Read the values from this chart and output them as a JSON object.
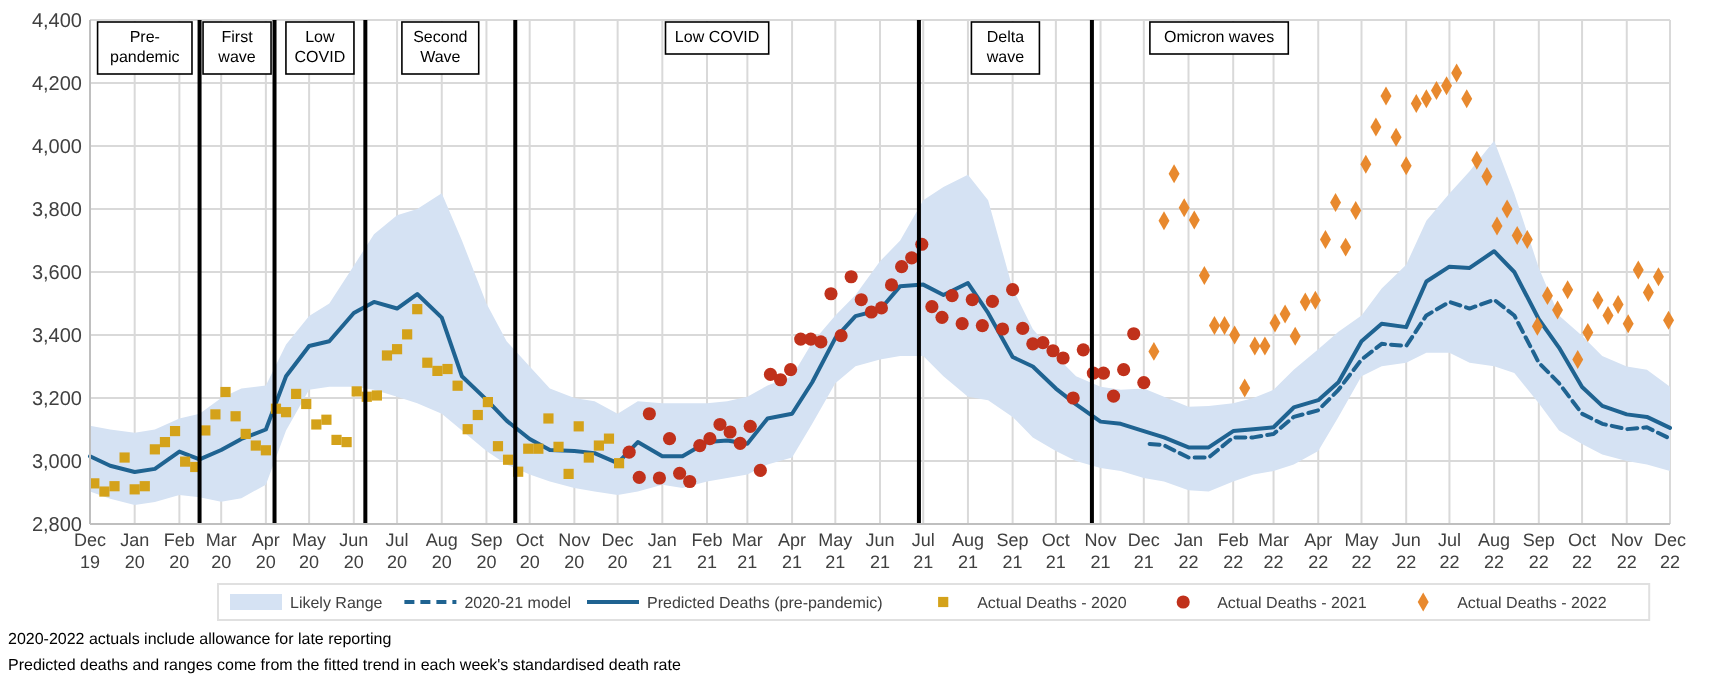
{
  "chart_data": {
    "type": "line",
    "x": [
      "2019-12-01",
      "2019-12-15",
      "2020-01-01",
      "2020-01-15",
      "2020-02-01",
      "2020-02-15",
      "2020-03-01",
      "2020-03-15",
      "2020-04-01",
      "2020-04-15",
      "2020-05-01",
      "2020-05-15",
      "2020-06-01",
      "2020-06-15",
      "2020-07-01",
      "2020-07-15",
      "2020-08-01",
      "2020-08-15",
      "2020-09-01",
      "2020-09-15",
      "2020-10-01",
      "2020-10-15",
      "2020-11-01",
      "2020-11-15",
      "2020-12-01",
      "2020-12-15",
      "2021-01-01",
      "2021-01-15",
      "2021-02-01",
      "2021-02-15",
      "2021-03-01",
      "2021-03-15",
      "2021-04-01",
      "2021-04-15",
      "2021-05-01",
      "2021-05-15",
      "2021-06-01",
      "2021-06-15",
      "2021-07-01",
      "2021-07-15",
      "2021-08-01",
      "2021-08-15",
      "2021-09-01",
      "2021-09-15",
      "2021-10-01",
      "2021-10-15",
      "2021-11-01",
      "2021-11-15",
      "2021-12-01",
      "2021-12-15",
      "2022-01-01",
      "2022-01-15",
      "2022-02-01",
      "2022-02-15",
      "2022-03-01",
      "2022-03-15",
      "2022-04-01",
      "2022-04-15",
      "2022-05-01",
      "2022-05-15",
      "2022-06-01",
      "2022-06-15",
      "2022-07-01",
      "2022-07-15",
      "2022-08-01",
      "2022-08-15",
      "2022-09-01",
      "2022-09-15",
      "2022-10-01",
      "2022-10-15",
      "2022-11-01",
      "2022-11-15",
      "2022-12-01"
    ],
    "series": [
      {
        "name": "2020-21 model",
        "type": "line",
        "color": "#1f6391",
        "line_style": "dashed",
        "x": [
          "2021-12-05",
          "2021-12-15",
          "2022-01-01",
          "2022-01-15",
          "2022-02-01",
          "2022-02-15",
          "2022-03-01",
          "2022-03-15",
          "2022-04-01",
          "2022-04-15",
          "2022-05-01",
          "2022-05-15",
          "2022-06-01",
          "2022-06-15",
          "2022-07-01",
          "2022-07-15",
          "2022-08-01",
          "2022-08-15",
          "2022-09-01",
          "2022-09-15",
          "2022-10-01",
          "2022-10-15",
          "2022-11-01",
          "2022-11-15",
          "2022-12-01"
        ],
        "values": [
          3054,
          3050,
          3011,
          3011,
          3075,
          3075,
          3086,
          3140,
          3161,
          3226,
          3322,
          3372,
          3365,
          3462,
          3505,
          3484,
          3512,
          3462,
          3312,
          3247,
          3150,
          3118,
          3101,
          3107,
          3071
        ]
      },
      {
        "name": "Predicted Deaths (pre-pandemic)",
        "type": "line",
        "color": "#1f6391",
        "line_style": "solid",
        "lower": [
          2903,
          2880,
          2860,
          2870,
          2892,
          2885,
          2871,
          2882,
          2925,
          3097,
          3226,
          3236,
          3236,
          3226,
          3204,
          3183,
          3150,
          3097,
          3032,
          2989,
          2957,
          2935,
          2914,
          2903,
          2892,
          2903,
          2925,
          2914,
          2935,
          2946,
          2957,
          2989,
          3011,
          3118,
          3247,
          3301,
          3322,
          3333,
          3333,
          3269,
          3204,
          3193,
          3140,
          3075,
          3032,
          3000,
          2978,
          2968,
          2946,
          2935,
          2907,
          2903,
          2935,
          2957,
          2968,
          2989,
          3032,
          3140,
          3269,
          3301,
          3312,
          3344,
          3344,
          3312,
          3301,
          3279,
          3183,
          3097,
          3054,
          3021,
          3000,
          2989,
          2968
        ],
        "upper": [
          3112,
          3100,
          3090,
          3100,
          3135,
          3150,
          3200,
          3230,
          3240,
          3370,
          3460,
          3500,
          3620,
          3720,
          3780,
          3800,
          3850,
          3700,
          3500,
          3380,
          3300,
          3230,
          3200,
          3190,
          3150,
          3190,
          3183,
          3183,
          3183,
          3190,
          3204,
          3240,
          3269,
          3376,
          3462,
          3527,
          3634,
          3700,
          3828,
          3870,
          3909,
          3828,
          3548,
          3419,
          3333,
          3269,
          3236,
          3226,
          3230,
          3204,
          3172,
          3175,
          3183,
          3200,
          3226,
          3290,
          3355,
          3410,
          3462,
          3548,
          3623,
          3763,
          3849,
          3920,
          4017,
          3849,
          3613,
          3462,
          3398,
          3333,
          3300,
          3290,
          3236
        ],
        "values": [
          3015,
          2985,
          2965,
          2975,
          3030,
          3005,
          3035,
          3070,
          3100,
          3269,
          3365,
          3380,
          3470,
          3505,
          3484,
          3530,
          3455,
          3269,
          3195,
          3128,
          3070,
          3035,
          3032,
          3025,
          2993,
          3060,
          3015,
          3015,
          3060,
          3065,
          3055,
          3135,
          3150,
          3250,
          3390,
          3460,
          3480,
          3555,
          3560,
          3527,
          3565,
          3470,
          3330,
          3300,
          3230,
          3180,
          3125,
          3118,
          3095,
          3075,
          3043,
          3043,
          3095,
          3101,
          3107,
          3170,
          3193,
          3250,
          3380,
          3436,
          3425,
          3570,
          3617,
          3613,
          3666,
          3600,
          3450,
          3360,
          3235,
          3175,
          3148,
          3140,
          3105
        ]
      },
      {
        "name": "Actual Deaths - 2020",
        "type": "scatter",
        "color": "#d4a21a",
        "marker": "square",
        "x": [
          "2019-12-04",
          "2019-12-11",
          "2019-12-18",
          "2019-12-25",
          "2020-01-01",
          "2020-01-08",
          "2020-01-15",
          "2020-01-22",
          "2020-01-29",
          "2020-02-05",
          "2020-02-12",
          "2020-02-19",
          "2020-02-26",
          "2020-03-04",
          "2020-03-11",
          "2020-03-18",
          "2020-03-25",
          "2020-04-01",
          "2020-04-08",
          "2020-04-15",
          "2020-04-22",
          "2020-04-29",
          "2020-05-06",
          "2020-05-13",
          "2020-05-20",
          "2020-05-27",
          "2020-06-03",
          "2020-06-10",
          "2020-06-17",
          "2020-06-24",
          "2020-07-01",
          "2020-07-08",
          "2020-07-15",
          "2020-07-22",
          "2020-07-29",
          "2020-08-05",
          "2020-08-12",
          "2020-08-19",
          "2020-08-26",
          "2020-09-02",
          "2020-09-09",
          "2020-09-16",
          "2020-09-23",
          "2020-09-30",
          "2020-10-07",
          "2020-10-14",
          "2020-10-21",
          "2020-10-28",
          "2020-11-04",
          "2020-11-11",
          "2020-11-18",
          "2020-11-25",
          "2020-12-02"
        ],
        "values": [
          2929,
          2903,
          2920,
          3011,
          2910,
          2920,
          3037,
          3060,
          3095,
          2998,
          2981,
          3097,
          3148,
          3219,
          3142,
          3086,
          3049,
          3034,
          3166,
          3155,
          3213,
          3181,
          3116,
          3131,
          3067,
          3060,
          3221,
          3204,
          3208,
          3335,
          3355,
          3402,
          3482,
          3312,
          3286,
          3292,
          3239,
          3101,
          3146,
          3187,
          3047,
          3004,
          2966,
          3039,
          3039,
          3135,
          3045,
          2959,
          3110,
          3011,
          3049,
          3071,
          2993
        ]
      },
      {
        "name": "Actual Deaths - 2021",
        "type": "scatter",
        "color": "#c0311b",
        "marker": "circle",
        "x": [
          "2020-12-09",
          "2020-12-16",
          "2020-12-23",
          "2020-12-30",
          "2021-01-06",
          "2021-01-13",
          "2021-01-20",
          "2021-01-27",
          "2021-02-03",
          "2021-02-10",
          "2021-02-17",
          "2021-02-24",
          "2021-03-03",
          "2021-03-10",
          "2021-03-17",
          "2021-03-24",
          "2021-03-31",
          "2021-04-07",
          "2021-04-14",
          "2021-04-21",
          "2021-04-28",
          "2021-05-05",
          "2021-05-12",
          "2021-05-19",
          "2021-05-26",
          "2021-06-02",
          "2021-06-09",
          "2021-06-16",
          "2021-06-23",
          "2021-06-30",
          "2021-07-07",
          "2021-07-14",
          "2021-07-21",
          "2021-07-28",
          "2021-08-04",
          "2021-08-11",
          "2021-08-18",
          "2021-08-25",
          "2021-09-01",
          "2021-09-08",
          "2021-09-15",
          "2021-09-22",
          "2021-09-29",
          "2021-10-06",
          "2021-10-13",
          "2021-10-20",
          "2021-10-27",
          "2021-11-03",
          "2021-11-10",
          "2021-11-17",
          "2021-11-24",
          "2021-12-01"
        ],
        "values": [
          3028,
          2948,
          3150,
          2946,
          3071,
          2961,
          2935,
          3049,
          3071,
          3116,
          3092,
          3056,
          3110,
          2970,
          3275,
          3258,
          3290,
          3387,
          3387,
          3378,
          3531,
          3398,
          3585,
          3512,
          3473,
          3486,
          3559,
          3617,
          3645,
          3688,
          3490,
          3456,
          3525,
          3436,
          3512,
          3430,
          3507,
          3419,
          3544,
          3421,
          3372,
          3376,
          3350,
          3327,
          3200,
          3353,
          3279,
          3279,
          3206,
          3290,
          3404,
          3249
        ]
      },
      {
        "name": "Actual Deaths - 2022",
        "type": "scatter",
        "color": "#e8892e",
        "marker": "diamond",
        "x": [
          "2021-12-08",
          "2021-12-15",
          "2021-12-22",
          "2021-12-29",
          "2022-01-05",
          "2022-01-12",
          "2022-01-19",
          "2022-01-26",
          "2022-02-02",
          "2022-02-09",
          "2022-02-16",
          "2022-02-23",
          "2022-03-02",
          "2022-03-09",
          "2022-03-16",
          "2022-03-23",
          "2022-03-30",
          "2022-04-06",
          "2022-04-13",
          "2022-04-20",
          "2022-04-27",
          "2022-05-04",
          "2022-05-11",
          "2022-05-18",
          "2022-05-25",
          "2022-06-01",
          "2022-06-08",
          "2022-06-15",
          "2022-06-22",
          "2022-06-29",
          "2022-07-06",
          "2022-07-13",
          "2022-07-20",
          "2022-07-27",
          "2022-08-03",
          "2022-08-10",
          "2022-08-17",
          "2022-08-24",
          "2022-08-31",
          "2022-09-07",
          "2022-09-14",
          "2022-09-21",
          "2022-09-28",
          "2022-10-05",
          "2022-10-12",
          "2022-10-19",
          "2022-10-26",
          "2022-11-02",
          "2022-11-09",
          "2022-11-16",
          "2022-11-23",
          "2022-11-30"
        ],
        "values": [
          3348,
          3763,
          3912,
          3804,
          3765,
          3589,
          3430,
          3430,
          3400,
          3232,
          3365,
          3365,
          3438,
          3467,
          3396,
          3505,
          3510,
          3703,
          3821,
          3679,
          3795,
          3942,
          4060,
          4159,
          4028,
          3937,
          4135,
          4150,
          4176,
          4191,
          4232,
          4150,
          3955,
          3903,
          3746,
          3800,
          3716,
          3703,
          3428,
          3525,
          3479,
          3544,
          3322,
          3408,
          3510,
          3462,
          3497,
          3436,
          3606,
          3535,
          3585,
          3447
        ]
      }
    ],
    "xlim": [
      "2019-12-01",
      "2022-12-01"
    ],
    "xticks": [
      {
        "value": "2019-12-01",
        "label": "Dec 19"
      },
      {
        "value": "2020-01-01",
        "label": "Jan 20"
      },
      {
        "value": "2020-02-01",
        "label": "Feb 20"
      },
      {
        "value": "2020-03-01",
        "label": "Mar 20"
      },
      {
        "value": "2020-04-01",
        "label": "Apr 20"
      },
      {
        "value": "2020-05-01",
        "label": "May 20"
      },
      {
        "value": "2020-06-01",
        "label": "Jun 20"
      },
      {
        "value": "2020-07-01",
        "label": "Jul 20"
      },
      {
        "value": "2020-08-01",
        "label": "Aug 20"
      },
      {
        "value": "2020-09-01",
        "label": "Sep 20"
      },
      {
        "value": "2020-10-01",
        "label": "Oct 20"
      },
      {
        "value": "2020-11-01",
        "label": "Nov 20"
      },
      {
        "value": "2020-12-01",
        "label": "Dec 20"
      },
      {
        "value": "2021-01-01",
        "label": "Jan 21"
      },
      {
        "value": "2021-02-01",
        "label": "Feb 21"
      },
      {
        "value": "2021-03-01",
        "label": "Mar 21"
      },
      {
        "value": "2021-04-01",
        "label": "Apr 21"
      },
      {
        "value": "2021-05-01",
        "label": "May 21"
      },
      {
        "value": "2021-06-01",
        "label": "Jun 21"
      },
      {
        "value": "2021-07-01",
        "label": "Jul 21"
      },
      {
        "value": "2021-08-01",
        "label": "Aug 21"
      },
      {
        "value": "2021-09-01",
        "label": "Sep 21"
      },
      {
        "value": "2021-10-01",
        "label": "Oct 21"
      },
      {
        "value": "2021-11-01",
        "label": "Nov 21"
      },
      {
        "value": "2021-12-01",
        "label": "Dec 21"
      },
      {
        "value": "2022-01-01",
        "label": "Jan 22"
      },
      {
        "value": "2022-02-01",
        "label": "Feb 22"
      },
      {
        "value": "2022-03-01",
        "label": "Mar 22"
      },
      {
        "value": "2022-04-01",
        "label": "Apr 22"
      },
      {
        "value": "2022-05-01",
        "label": "May 22"
      },
      {
        "value": "2022-06-01",
        "label": "Jun 22"
      },
      {
        "value": "2022-07-01",
        "label": "Jul 22"
      },
      {
        "value": "2022-08-01",
        "label": "Aug 22"
      },
      {
        "value": "2022-09-01",
        "label": "Sep 22"
      },
      {
        "value": "2022-10-01",
        "label": "Oct 22"
      },
      {
        "value": "2022-11-01",
        "label": "Nov 22"
      },
      {
        "value": "2022-12-01",
        "label": "Dec 22"
      }
    ],
    "ylim": [
      2800,
      4400
    ],
    "yticks": [
      {
        "value": 2800,
        "label": "2,800"
      },
      {
        "value": 3000,
        "label": "3,000"
      },
      {
        "value": 3200,
        "label": "3,200"
      },
      {
        "value": 3400,
        "label": "3,400"
      },
      {
        "value": 3600,
        "label": "3,600"
      },
      {
        "value": 3800,
        "label": "3,800"
      },
      {
        "value": 4000,
        "label": "4,000"
      },
      {
        "value": 4200,
        "label": "4,200"
      },
      {
        "value": 4400,
        "label": "4,400"
      }
    ],
    "ref_lines": [
      {
        "axis": "x",
        "value": "2020-02-15",
        "color": "#000000"
      },
      {
        "axis": "x",
        "value": "2020-04-07",
        "color": "#000000"
      },
      {
        "axis": "x",
        "value": "2020-06-09",
        "color": "#000000"
      },
      {
        "axis": "x",
        "value": "2020-09-21",
        "color": "#000000"
      },
      {
        "axis": "x",
        "value": "2021-06-28",
        "color": "#000000"
      },
      {
        "axis": "x",
        "value": "2021-10-26",
        "color": "#000000"
      }
    ],
    "annotations": [
      "Pre-pandemic",
      "First wave",
      "Low COVID",
      "Second Wave",
      "Low COVID",
      "Delta wave",
      "Omicron waves",
      "2020-2022  actuals include allowance for late reporting",
      "Predicted deaths and ranges come from the fitted trend in each week's standardised death rate"
    ],
    "legend_title": "Likely Range",
    "grid": true,
    "legend": "bottom"
  }
}
